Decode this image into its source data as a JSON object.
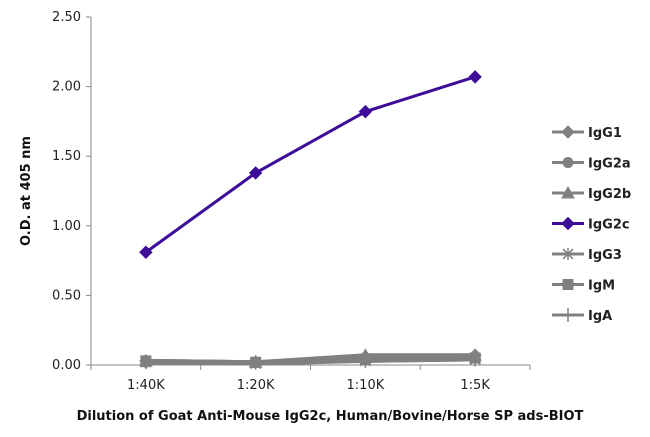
{
  "chart_data": {
    "type": "line",
    "title": "",
    "xlabel": "Dilution of Goat Anti-Mouse IgG2c, Human/Bovine/Horse SP ads-BIOT",
    "ylabel": "O.D. at 405 nm",
    "ylim": [
      0,
      2.5
    ],
    "yticks": [
      "0.00",
      "0.50",
      "1.00",
      "1.50",
      "2.00",
      "2.50"
    ],
    "categories": [
      "1:40K",
      "1:20K",
      "1:10K",
      "1:5K"
    ],
    "grid": false,
    "legend_position": "right",
    "series": [
      {
        "name": "IgG1",
        "values": [
          0.03,
          0.02,
          0.06,
          0.07
        ],
        "color": "#808080",
        "marker": "diamond"
      },
      {
        "name": "IgG2a",
        "values": [
          0.02,
          0.02,
          0.04,
          0.05
        ],
        "color": "#808080",
        "marker": "circle"
      },
      {
        "name": "IgG2b",
        "values": [
          0.03,
          0.02,
          0.07,
          0.07
        ],
        "color": "#808080",
        "marker": "triangle"
      },
      {
        "name": "IgG2c",
        "values": [
          0.81,
          1.38,
          1.82,
          2.07
        ],
        "color": "#3d0d99",
        "marker": "diamond"
      },
      {
        "name": "IgG3",
        "values": [
          0.02,
          0.01,
          0.03,
          0.04
        ],
        "color": "#808080",
        "marker": "star"
      },
      {
        "name": "IgM",
        "values": [
          0.03,
          0.02,
          0.04,
          0.05
        ],
        "color": "#808080",
        "marker": "square"
      },
      {
        "name": "IgA",
        "values": [
          0.02,
          0.02,
          0.03,
          0.04
        ],
        "color": "#808080",
        "marker": "plus"
      }
    ]
  }
}
